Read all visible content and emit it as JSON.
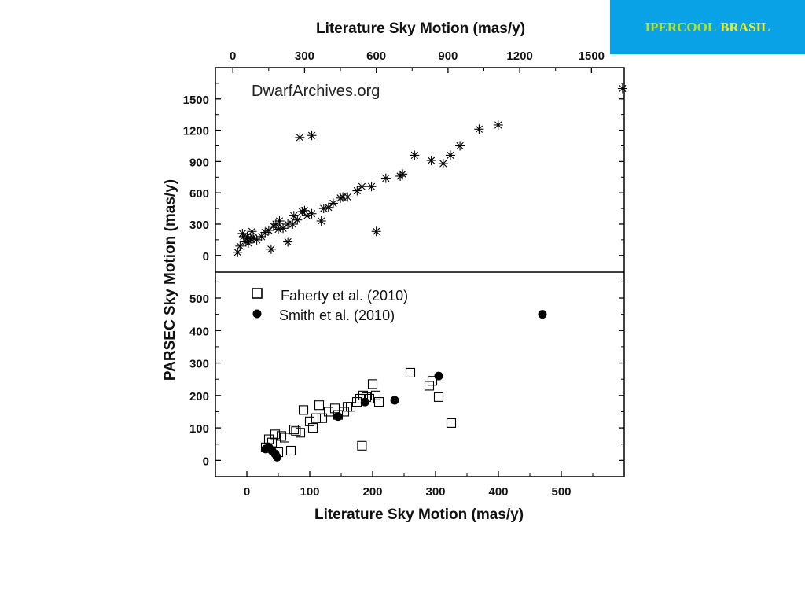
{
  "banner": {
    "word1": "IPERCOOL",
    "word2": "BRASIL",
    "color1": "#b9e21a",
    "color2": "#f2ec1c",
    "background": "#0aa2e6"
  },
  "chart_data": [
    {
      "panel": "top",
      "type": "scatter",
      "xlabel": "Literature Sky Motion (mas/y)",
      "ylabel": "PARSEC Sky Motion (mas/y)",
      "annotation": "DwarfArchives.org",
      "x_axis_position": "top",
      "xlim": [
        -73,
        1637
      ],
      "xticks": [
        0,
        300,
        600,
        900,
        1200,
        1500
      ],
      "ylim": [
        -160,
        1800
      ],
      "yticks": [
        0,
        300,
        600,
        900,
        1200,
        1500
      ],
      "marker": "asterisk",
      "color": "#000000",
      "series": [
        {
          "points": [
            [
              20,
              30
            ],
            [
              30,
              90
            ],
            [
              45,
              180
            ],
            [
              55,
              130
            ],
            [
              65,
              120
            ],
            [
              75,
              160
            ],
            [
              85,
              170
            ],
            [
              100,
              150
            ],
            [
              120,
              180
            ],
            [
              135,
              220
            ],
            [
              150,
              240
            ],
            [
              170,
              280
            ],
            [
              180,
              300
            ],
            [
              195,
              330
            ],
            [
              210,
              260
            ],
            [
              230,
              300
            ],
            [
              255,
              380
            ],
            [
              270,
              340
            ],
            [
              290,
              420
            ],
            [
              300,
              430
            ],
            [
              310,
              380
            ],
            [
              330,
              400
            ],
            [
              370,
              330
            ],
            [
              380,
              450
            ],
            [
              400,
              460
            ],
            [
              420,
              500
            ],
            [
              450,
              550
            ],
            [
              460,
              560
            ],
            [
              480,
              560
            ],
            [
              520,
              620
            ],
            [
              540,
              660
            ],
            [
              580,
              660
            ],
            [
              640,
              740
            ],
            [
              700,
              760
            ],
            [
              710,
              780
            ],
            [
              760,
              960
            ],
            [
              830,
              910
            ],
            [
              880,
              880
            ],
            [
              910,
              960
            ],
            [
              950,
              1050
            ],
            [
              1030,
              1210
            ],
            [
              1110,
              1250
            ],
            [
              40,
              210
            ],
            [
              80,
              230
            ],
            [
              160,
              60
            ],
            [
              230,
              130
            ],
            [
              280,
              1130
            ],
            [
              330,
              1150
            ],
            [
              600,
              230
            ],
            [
              60,
              180
            ],
            [
              190,
              250
            ],
            [
              250,
              300
            ],
            [
              1630,
              1600
            ]
          ]
        }
      ]
    },
    {
      "panel": "bottom",
      "type": "scatter",
      "xlabel": "Literature Sky Motion (mas/y)",
      "xlim": [
        -50,
        600
      ],
      "xticks": [
        0,
        100,
        200,
        300,
        400,
        500
      ],
      "ylim": [
        -50,
        580
      ],
      "yticks": [
        0,
        100,
        200,
        300,
        400,
        500
      ],
      "legend_position": "top-left",
      "series": [
        {
          "name": "Faherty et al. (2010)",
          "marker": "open-square",
          "color": "#000000",
          "points": [
            [
              30,
              40
            ],
            [
              35,
              65
            ],
            [
              40,
              55
            ],
            [
              45,
              80
            ],
            [
              50,
              25
            ],
            [
              55,
              75
            ],
            [
              60,
              70
            ],
            [
              70,
              30
            ],
            [
              75,
              95
            ],
            [
              78,
              90
            ],
            [
              85,
              85
            ],
            [
              90,
              155
            ],
            [
              100,
              120
            ],
            [
              105,
              100
            ],
            [
              110,
              130
            ],
            [
              115,
              170
            ],
            [
              120,
              130
            ],
            [
              130,
              150
            ],
            [
              140,
              160
            ],
            [
              145,
              140
            ],
            [
              155,
              150
            ],
            [
              160,
              165
            ],
            [
              165,
              165
            ],
            [
              175,
              180
            ],
            [
              180,
              190
            ],
            [
              183,
              45
            ],
            [
              185,
              200
            ],
            [
              190,
              195
            ],
            [
              195,
              190
            ],
            [
              200,
              235
            ],
            [
              205,
              200
            ],
            [
              210,
              180
            ],
            [
              260,
              270
            ],
            [
              290,
              230
            ],
            [
              295,
              245
            ],
            [
              305,
              195
            ],
            [
              325,
              115
            ]
          ]
        },
        {
          "name": "Smith et al. (2010)",
          "marker": "filled-circle",
          "color": "#000000",
          "points": [
            [
              30,
              35
            ],
            [
              35,
              40
            ],
            [
              40,
              30
            ],
            [
              45,
              20
            ],
            [
              48,
              10
            ],
            [
              145,
              135
            ],
            [
              188,
              180
            ],
            [
              235,
              185
            ],
            [
              305,
              260
            ],
            [
              470,
              450
            ]
          ]
        }
      ]
    }
  ]
}
